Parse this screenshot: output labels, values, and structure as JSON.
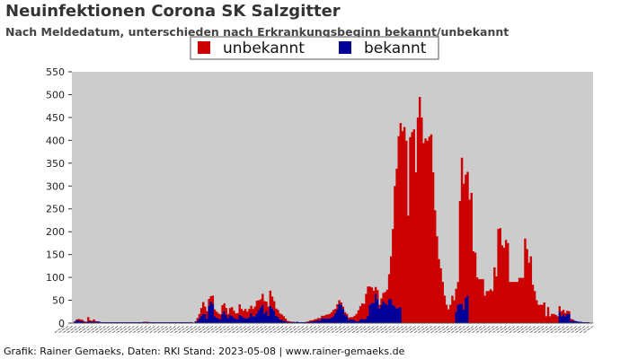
{
  "colors": {
    "unbekannt": "#cc0000",
    "bekannt": "#000099",
    "plot_background": "#cccccc"
  },
  "footer": "Grafik: Rainer Gemaeks, Daten: RKI Stand: 2023-05-08 | www.rainer-gemaeks.de",
  "chart_data": {
    "type": "bar",
    "stacked": true,
    "title": "Neuinfektionen Corona SK Salzgitter",
    "subtitle": "Nach Meldedatum, unterschieden nach Erkrankungsbeginn bekannt/unbekannt",
    "legend_position": "top-center",
    "grid": false,
    "ylim": [
      0,
      550
    ],
    "yticks": [
      0,
      50,
      100,
      150,
      200,
      250,
      300,
      350,
      400,
      450,
      500,
      550
    ],
    "x_tick_labels_legible": false,
    "series": [
      {
        "name": "unbekannt",
        "values": [
          0,
          1,
          2,
          3,
          4,
          3,
          2,
          1,
          9,
          3,
          2,
          5,
          1,
          1,
          0,
          0,
          0,
          0,
          0,
          0,
          0,
          0,
          0,
          0,
          0,
          0,
          0,
          0,
          0,
          0,
          0,
          0,
          0,
          0,
          0,
          0,
          0,
          1,
          1,
          1,
          0,
          0,
          0,
          0,
          0,
          0,
          0,
          0,
          0,
          0,
          0,
          0,
          0,
          0,
          0,
          0,
          0,
          0,
          0,
          0,
          0,
          0,
          0,
          0,
          1,
          6,
          10,
          17,
          26,
          16,
          16,
          15,
          12,
          18,
          15,
          13,
          11,
          11,
          19,
          17,
          15,
          9,
          15,
          19,
          15,
          12,
          13,
          23,
          15,
          15,
          20,
          15,
          18,
          16,
          16,
          21,
          28,
          21,
          17,
          24,
          27,
          20,
          20,
          33,
          25,
          21,
          16,
          15,
          13,
          12,
          10,
          6,
          3,
          2,
          1,
          1,
          0,
          0,
          0,
          0,
          0,
          0,
          1,
          2,
          3,
          3,
          4,
          4,
          5,
          5,
          6,
          6,
          8,
          9,
          10,
          12,
          14,
          9,
          11,
          8,
          5,
          5,
          5,
          5,
          5,
          5,
          5,
          10,
          16,
          24,
          29,
          34,
          34,
          54,
          64,
          40,
          34,
          27,
          15,
          20,
          8,
          14,
          18,
          25,
          33,
          55,
          93,
          166,
          263,
          306,
          375,
          403,
          420,
          429,
          399,
          235,
          407,
          418,
          424,
          330,
          450,
          495,
          450,
          394,
          404,
          399,
          408,
          413,
          330,
          247,
          190,
          140,
          120,
          90,
          60,
          40,
          30,
          40,
          60,
          50,
          50,
          50,
          225,
          320,
          275,
          270,
          271,
          270,
          285,
          157,
          154,
          100,
          96,
          96,
          96,
          60,
          70,
          70,
          74,
          70,
          122,
          102,
          206,
          208,
          170,
          165,
          182,
          175,
          90,
          90,
          90,
          90,
          90,
          99,
          99,
          99,
          185,
          162,
          132,
          146,
          84,
          70,
          50,
          40,
          40,
          40,
          45,
          15,
          35,
          15,
          20,
          20,
          18,
          15,
          12,
          11,
          10,
          7,
          7,
          6,
          4,
          3
        ]
      },
      {
        "name": "bekannt",
        "values": [
          0,
          3,
          6,
          6,
          4,
          4,
          2,
          2,
          4,
          3,
          3,
          3,
          3,
          3,
          3,
          2,
          2,
          2,
          2,
          2,
          2,
          2,
          2,
          2,
          2,
          2,
          2,
          2,
          2,
          2,
          2,
          2,
          2,
          2,
          2,
          2,
          2,
          2,
          2,
          2,
          2,
          2,
          2,
          2,
          2,
          2,
          2,
          2,
          2,
          2,
          2,
          2,
          2,
          2,
          2,
          2,
          2,
          2,
          2,
          2,
          2,
          2,
          2,
          1,
          3,
          5,
          10,
          16,
          20,
          20,
          10,
          38,
          47,
          42,
          15,
          12,
          10,
          8,
          20,
          26,
          18,
          11,
          18,
          16,
          12,
          9,
          9,
          18,
          16,
          12,
          11,
          10,
          13,
          22,
          15,
          15,
          21,
          29,
          35,
          40,
          21,
          27,
          16,
          38,
          33,
          27,
          16,
          14,
          8,
          7,
          5,
          4,
          2,
          2,
          2,
          2,
          2,
          3,
          2,
          2,
          2,
          2,
          2,
          2,
          3,
          3,
          4,
          5,
          6,
          6,
          10,
          10,
          10,
          10,
          10,
          12,
          15,
          22,
          30,
          42,
          40,
          31,
          19,
          15,
          7,
          8,
          8,
          6,
          4,
          4,
          8,
          9,
          8,
          10,
          16,
          40,
          44,
          44,
          64,
          52,
          32,
          40,
          48,
          43,
          40,
          52,
          53,
          40,
          37,
          32,
          34,
          35,
          0,
          0,
          0,
          0,
          0,
          0,
          0,
          0,
          0,
          0,
          0,
          0,
          0,
          0,
          0,
          0,
          0,
          0,
          0,
          0,
          0,
          0,
          0,
          0,
          0,
          0,
          0,
          0,
          25,
          40,
          42,
          42,
          30,
          55,
          60,
          0,
          0,
          0,
          0,
          0,
          0,
          0,
          0,
          0,
          0,
          0,
          0,
          0,
          0,
          0,
          0,
          0,
          0,
          0,
          0,
          0,
          0,
          0,
          0,
          0,
          0,
          0,
          0,
          0,
          0,
          0,
          0,
          0,
          0,
          0,
          0,
          0,
          0,
          0,
          0,
          0,
          0,
          0,
          0,
          0,
          0,
          0,
          25,
          15,
          19,
          15,
          20,
          20,
          5,
          5,
          5,
          4,
          3,
          3,
          2,
          2,
          2,
          2,
          1,
          1
        ]
      }
    ]
  }
}
